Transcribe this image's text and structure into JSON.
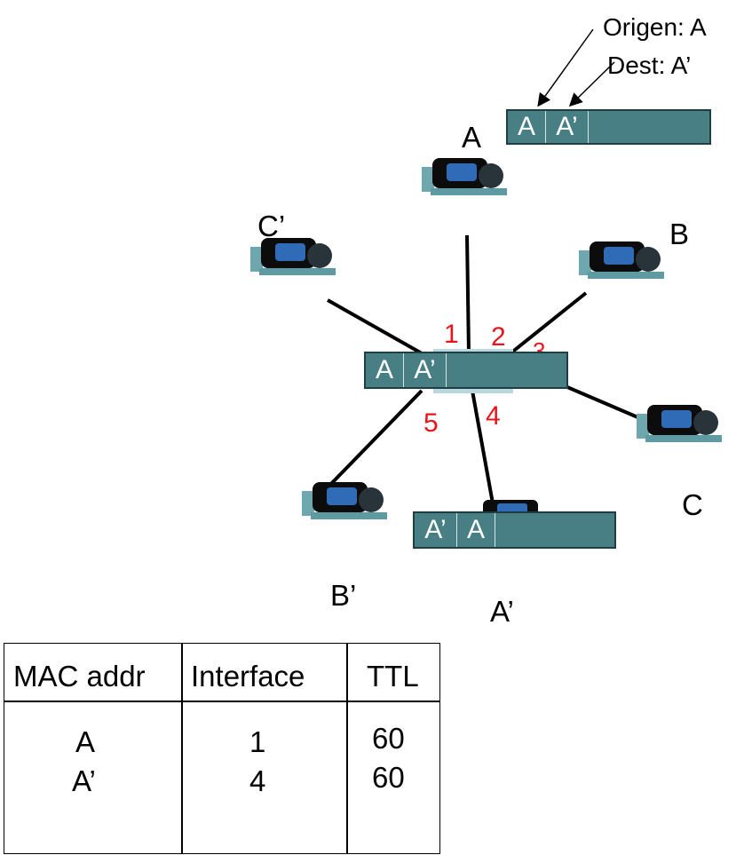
{
  "frame_top": {
    "fields": [
      "A",
      "A’",
      ""
    ]
  },
  "frame_switch": {
    "fields": [
      "A",
      "A’",
      ""
    ]
  },
  "frame_bottom": {
    "fields": [
      "A’",
      "A",
      ""
    ]
  },
  "annotation": {
    "origin": "Origen: A",
    "dest": "Dest: A’"
  },
  "hosts": {
    "a": "A",
    "b": "B",
    "c": "C",
    "c_prime": "C’",
    "b_prime": "B’",
    "a_prime": "A’"
  },
  "ports": {
    "p1": "1",
    "p2": "2",
    "p4": "4",
    "p5": "5"
  },
  "table": {
    "headers": [
      "MAC addr",
      "Interface",
      "TTL"
    ],
    "rows": [
      {
        "mac": "A",
        "iface": "1",
        "ttl": "60"
      },
      {
        "mac": "A’",
        "iface": "4",
        "ttl": "60"
      }
    ]
  },
  "colors": {
    "frame": "#487f84",
    "port_label": "#e8141c"
  }
}
